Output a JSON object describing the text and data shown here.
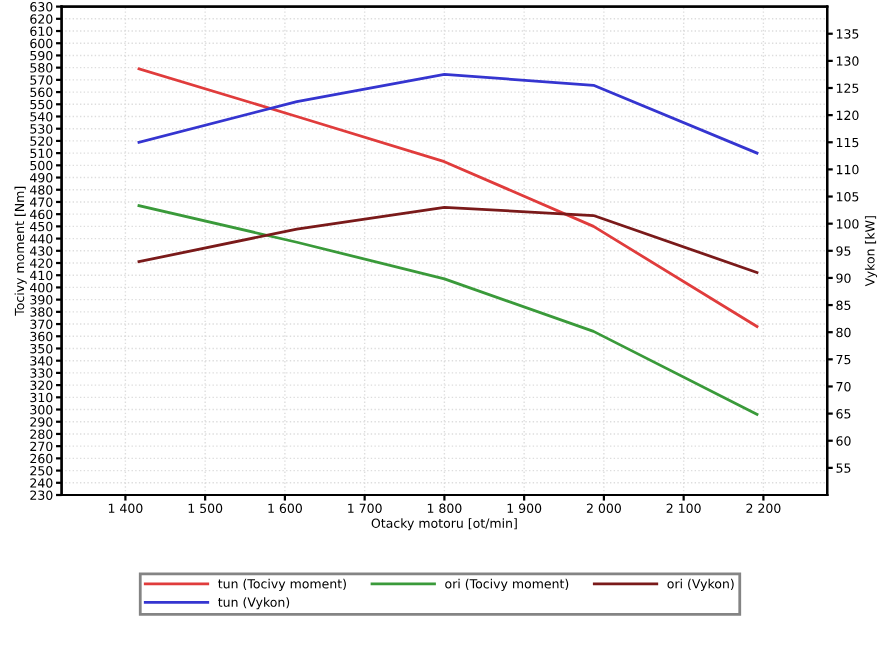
{
  "chart_data": {
    "type": "line",
    "xlabel": "Otacky motoru [ot/min]",
    "ylabel": "Tocivy moment [Nm]",
    "y2label": "Vykon [kW]",
    "xlim": [
      1320,
      2280
    ],
    "xticks": [
      {
        "value": 1400,
        "label": "1 400"
      },
      {
        "value": 1500,
        "label": "1 500"
      },
      {
        "value": 1600,
        "label": "1 600"
      },
      {
        "value": 1700,
        "label": "1 700"
      },
      {
        "value": 1800,
        "label": "1 800"
      },
      {
        "value": 1900,
        "label": "1 900"
      },
      {
        "value": 2000,
        "label": "2 000"
      },
      {
        "value": 2100,
        "label": "2 100"
      },
      {
        "value": 2200,
        "label": "2 200"
      }
    ],
    "ylim": [
      230,
      630
    ],
    "yticks": [
      230,
      240,
      250,
      260,
      270,
      280,
      290,
      300,
      310,
      320,
      330,
      340,
      350,
      360,
      370,
      380,
      390,
      400,
      410,
      420,
      430,
      440,
      450,
      460,
      470,
      480,
      490,
      500,
      510,
      520,
      530,
      540,
      550,
      560,
      570,
      580,
      590,
      600,
      610,
      620,
      630
    ],
    "y2lim": [
      50,
      140
    ],
    "y2ticks": [
      55,
      60,
      65,
      70,
      75,
      80,
      85,
      90,
      95,
      100,
      105,
      110,
      115,
      120,
      125,
      130,
      135
    ],
    "grid": true,
    "legend": "bottom",
    "marker": "none",
    "line_style": "solid",
    "series": [
      {
        "name": "tun (Tocivy moment)",
        "color": "#e03c3c",
        "x": [
          1417,
          1615,
          1800,
          1987,
          2192
        ],
        "values": [
          579,
          540,
          503,
          450,
          368
        ]
      },
      {
        "name": "tun (Vykon)",
        "color": "#3535d0",
        "axis": "y2",
        "x": [
          1417,
          1615,
          1800,
          1987,
          2192
        ],
        "values": [
          115,
          122.5,
          127.5,
          125.5,
          113
        ]
      },
      {
        "name": "ori (Tocivy moment)",
        "color": "#3a9a3a",
        "x": [
          1417,
          1615,
          1800,
          1987,
          2192
        ],
        "values": [
          467,
          437,
          407,
          364,
          296
        ]
      },
      {
        "name": "ori (Vykon)",
        "color": "#7a1a1a",
        "axis": "y2",
        "x": [
          1417,
          1615,
          1800,
          1987,
          2192
        ],
        "values": [
          93,
          99,
          103,
          101.5,
          91
        ]
      }
    ]
  }
}
